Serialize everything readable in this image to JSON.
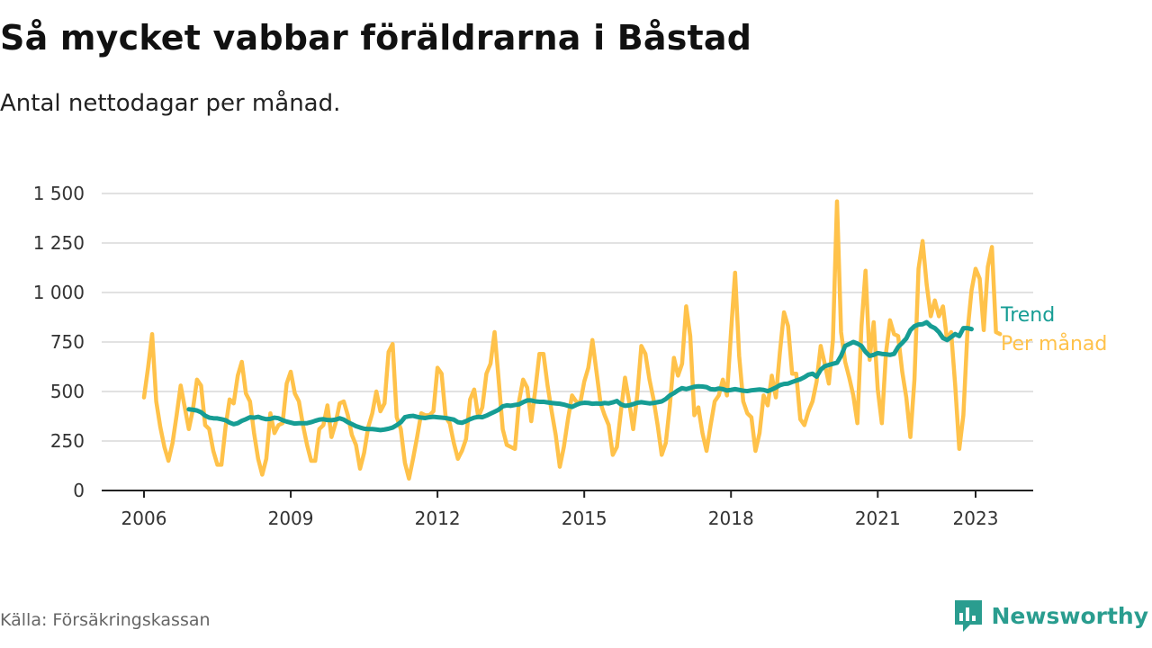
{
  "header": {
    "title": "Så mycket vabbar föräldrarna i Båstad",
    "subtitle": "Antal nettodagar per månad."
  },
  "footer": {
    "source": "Källa: Försäkringskassan",
    "brand": "Newsworthy"
  },
  "colors": {
    "monthly": "#ffc24a",
    "trend": "#169d94",
    "grid": "#d9d9d9",
    "axis": "#222222",
    "brand": "#2a9d8f"
  },
  "icons": {
    "brand": "bar-chart-logo-icon"
  },
  "chart_data": {
    "type": "line",
    "x_unit": "month",
    "x_start": "2006-01",
    "ylim": [
      0,
      1500
    ],
    "y_ticks": [
      0,
      250,
      500,
      750,
      1000,
      1250,
      1500
    ],
    "y_tick_labels": [
      "0",
      "250",
      "500",
      "750",
      "1 000",
      "1 250",
      "1 500"
    ],
    "x_ticks": [
      "2006",
      "2009",
      "2012",
      "2015",
      "2018",
      "2021",
      "2023"
    ],
    "grid": "horizontal",
    "series": [
      {
        "name": "Per månad",
        "start": "2006-01",
        "values": [
          470,
          620,
          790,
          450,
          320,
          220,
          150,
          240,
          380,
          530,
          420,
          310,
          410,
          560,
          530,
          330,
          310,
          200,
          130,
          130,
          320,
          460,
          440,
          580,
          650,
          490,
          450,
          290,
          160,
          80,
          160,
          390,
          290,
          330,
          340,
          540,
          600,
          490,
          450,
          330,
          230,
          150,
          150,
          310,
          330,
          430,
          270,
          340,
          440,
          450,
          380,
          280,
          230,
          110,
          190,
          320,
          390,
          500,
          400,
          440,
          700,
          740,
          370,
          310,
          140,
          60,
          160,
          270,
          390,
          380,
          380,
          400,
          620,
          590,
          370,
          340,
          240,
          160,
          200,
          260,
          460,
          510,
          370,
          420,
          590,
          640,
          800,
          560,
          310,
          230,
          220,
          210,
          450,
          560,
          520,
          350,
          510,
          690,
          690,
          530,
          400,
          280,
          120,
          220,
          360,
          480,
          450,
          440,
          550,
          620,
          760,
          600,
          440,
          380,
          330,
          180,
          220,
          400,
          570,
          450,
          310,
          480,
          730,
          690,
          560,
          460,
          330,
          180,
          240,
          430,
          670,
          580,
          640,
          930,
          780,
          380,
          420,
          290,
          200,
          330,
          450,
          480,
          560,
          480,
          800,
          1100,
          680,
          450,
          390,
          370,
          200,
          290,
          480,
          430,
          580,
          470,
          700,
          900,
          830,
          590,
          590,
          360,
          330,
          400,
          450,
          550,
          730,
          640,
          540,
          760,
          1460,
          800,
          650,
          570,
          480,
          340,
          830,
          1110,
          660,
          850,
          510,
          340,
          690,
          860,
          790,
          780,
          600,
          470,
          270,
          560,
          1120,
          1260,
          1040,
          880,
          960,
          880,
          930,
          760,
          800,
          530,
          210,
          380,
          800,
          1010,
          1120,
          1070,
          810,
          1130,
          1230,
          800,
          790
        ]
      },
      {
        "name": "Trend",
        "start": "2006-12",
        "values": [
          410,
          408,
          404,
          395,
          378,
          368,
          365,
          364,
          360,
          355,
          343,
          335,
          340,
          352,
          360,
          370,
          368,
          372,
          365,
          360,
          362,
          368,
          365,
          355,
          348,
          343,
          338,
          340,
          340,
          340,
          345,
          352,
          358,
          360,
          356,
          355,
          358,
          365,
          358,
          345,
          335,
          325,
          318,
          312,
          310,
          310,
          308,
          305,
          308,
          312,
          318,
          330,
          345,
          370,
          375,
          377,
          372,
          368,
          366,
          370,
          372,
          370,
          368,
          366,
          362,
          358,
          345,
          342,
          350,
          360,
          368,
          372,
          370,
          378,
          388,
          398,
          408,
          425,
          430,
          428,
          432,
          435,
          446,
          455,
          455,
          450,
          448,
          448,
          445,
          442,
          440,
          438,
          434,
          428,
          422,
          432,
          440,
          443,
          442,
          438,
          440,
          438,
          442,
          440,
          445,
          452,
          435,
          428,
          430,
          436,
          443,
          446,
          443,
          440,
          442,
          446,
          450,
          462,
          480,
          492,
          506,
          517,
          512,
          518,
          524,
          526,
          525,
          522,
          512,
          510,
          515,
          512,
          505,
          508,
          512,
          508,
          504,
          502,
          506,
          508,
          510,
          508,
          502,
          510,
          520,
          532,
          538,
          540,
          548,
          555,
          562,
          572,
          585,
          590,
          575,
          610,
          628,
          634,
          640,
          645,
          680,
          730,
          740,
          750,
          742,
          730,
          700,
          680,
          685,
          694,
          690,
          688,
          685,
          690,
          725,
          745,
          768,
          810,
          830,
          838,
          840,
          850,
          830,
          820,
          800,
          770,
          760,
          775,
          790,
          780,
          820,
          820,
          815
        ]
      }
    ],
    "end_labels": [
      "Trend",
      "Per månad"
    ]
  }
}
